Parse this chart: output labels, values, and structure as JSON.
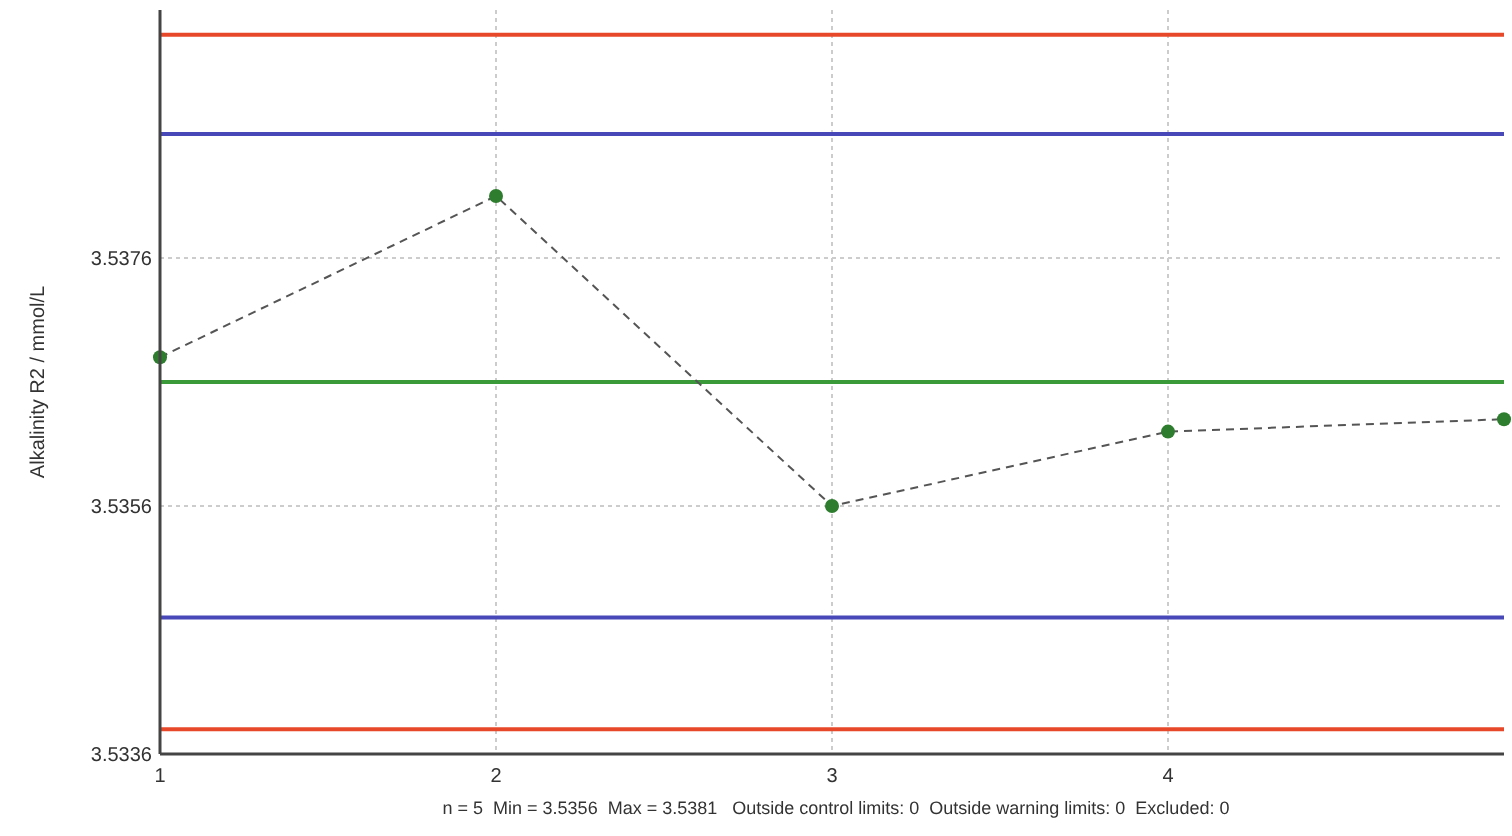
{
  "chart_data": {
    "type": "line",
    "ylabel": "Alkalinity R2 / mmol/L",
    "annotations": [
      "n = 5  Min = 3.5356  Max = 3.5381   Outside control limits: 0  Outside warning limits: 0  Excluded: 0"
    ],
    "x": [
      1,
      2,
      3,
      4,
      5
    ],
    "series": [
      {
        "color": "#2e7d2e",
        "values": [
          3.5368,
          3.5381,
          3.5356,
          3.5362,
          3.5363
        ]
      }
    ],
    "xlim": [
      1,
      5
    ],
    "xticks": [
      1,
      2,
      3,
      4
    ],
    "ylim": [
      3.5336,
      3.5396
    ],
    "yticks": [
      3.5336,
      3.5356,
      3.5376
    ],
    "grid": true,
    "marker": "circle",
    "line_style": "dashed",
    "ref_lines": [
      {
        "axis": "y",
        "value": 3.5394,
        "color": "#e8482a"
      },
      {
        "axis": "y",
        "value": 3.5386,
        "color": "#4848b8"
      },
      {
        "axis": "y",
        "value": 3.5366,
        "color": "#3a9a3a"
      },
      {
        "axis": "y",
        "value": 3.5347,
        "color": "#4848b8"
      },
      {
        "axis": "y",
        "value": 3.5338,
        "color": "#e8482a"
      }
    ]
  }
}
